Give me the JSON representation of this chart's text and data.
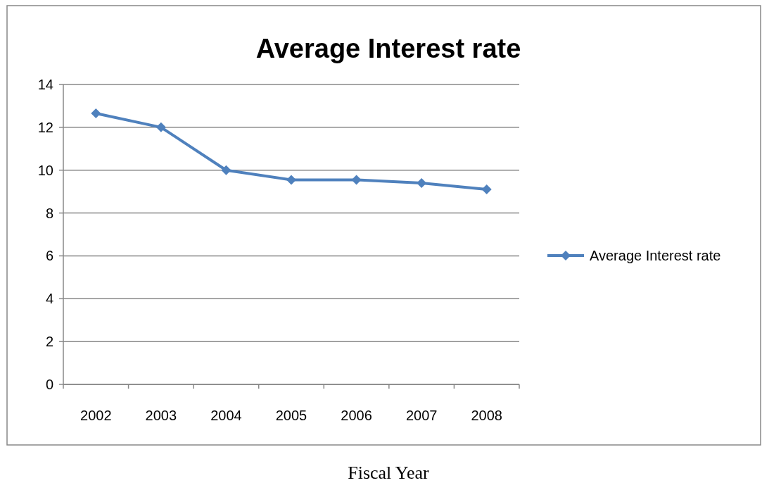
{
  "chart_data": {
    "type": "line",
    "title": "Average Interest rate",
    "xlabel": "Fiscal Year",
    "categories": [
      "2002",
      "2003",
      "2004",
      "2005",
      "2006",
      "2007",
      "2008"
    ],
    "series": [
      {
        "name": "Average Interest rate",
        "color": "#4f81bd",
        "values": [
          12.65,
          12,
          10,
          9.55,
          9.55,
          9.4,
          9.1
        ]
      }
    ],
    "ylim": [
      0,
      14
    ],
    "yticks": [
      0,
      2,
      4,
      6,
      8,
      10,
      12,
      14
    ],
    "grid": "y",
    "legend": "right",
    "marker": "diamond",
    "line_style": "solid"
  }
}
